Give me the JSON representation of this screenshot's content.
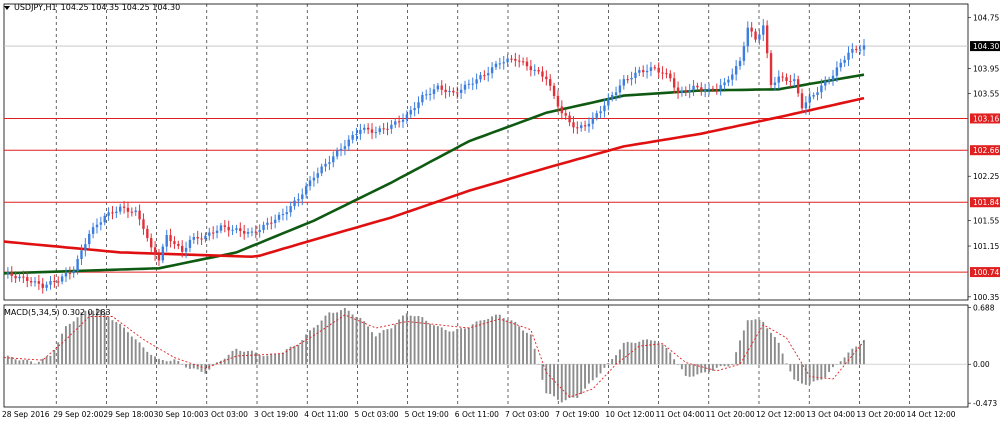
{
  "header": {
    "symbol": "USDJPY,H1",
    "ohlc": "104.25 104.35 104.25 104.30"
  },
  "macd_panel": {
    "label": "MACD(5,34,5) 0.302 0.283"
  },
  "colors": {
    "background": "#ffffff",
    "bull_candle": "#3c7ee0",
    "bear_candle": "#e0303a",
    "ma_green": "#0f5a12",
    "ma_red": "#e01010",
    "hline": "#e02020",
    "current_price_tag": "#000000"
  },
  "chart_data": [
    {
      "type": "candlestick",
      "title": "USDJPY,H1",
      "ylim": [
        100.3,
        104.9
      ],
      "y_ticks": [
        "104.75",
        "104.30",
        "103.95",
        "103.55",
        "103.16",
        "102.66",
        "102.25",
        "101.84",
        "101.55",
        "101.15",
        "100.74",
        "100.35"
      ],
      "current_price": 104.3,
      "horizontal_levels": [
        103.16,
        102.66,
        101.84,
        100.74
      ],
      "x_ticks": [
        "28 Sep 2016",
        "29 Sep 02:00",
        "29 Sep 18:00",
        "30 Sep 10:00",
        "3 Oct 03:00",
        "3 Oct 19:00",
        "4 Oct 11:00",
        "5 Oct 03:00",
        "5 Oct 19:00",
        "6 Oct 11:00",
        "7 Oct 03:00",
        "7 Oct 19:00",
        "10 Oct 12:00",
        "11 Oct 04:00",
        "11 Oct 20:00",
        "12 Oct 12:00",
        "13 Oct 04:00",
        "13 Oct 20:00",
        "14 Oct 12:00"
      ],
      "price_path": [
        [
          0,
          100.72
        ],
        [
          6,
          100.62
        ],
        [
          10,
          100.52
        ],
        [
          14,
          100.62
        ],
        [
          18,
          100.78
        ],
        [
          22,
          101.35
        ],
        [
          26,
          101.62
        ],
        [
          30,
          101.75
        ],
        [
          34,
          101.68
        ],
        [
          36,
          101.45
        ],
        [
          38,
          101.1
        ],
        [
          40,
          100.95
        ],
        [
          42,
          101.3
        ],
        [
          44,
          101.2
        ],
        [
          46,
          101.05
        ],
        [
          48,
          101.25
        ],
        [
          52,
          101.3
        ],
        [
          56,
          101.45
        ],
        [
          60,
          101.4
        ],
        [
          64,
          101.35
        ],
        [
          68,
          101.5
        ],
        [
          72,
          101.65
        ],
        [
          76,
          101.9
        ],
        [
          80,
          102.25
        ],
        [
          84,
          102.5
        ],
        [
          88,
          102.75
        ],
        [
          92,
          103.0
        ],
        [
          96,
          102.95
        ],
        [
          100,
          103.05
        ],
        [
          104,
          103.2
        ],
        [
          108,
          103.5
        ],
        [
          112,
          103.65
        ],
        [
          116,
          103.55
        ],
        [
          120,
          103.7
        ],
        [
          124,
          103.85
        ],
        [
          128,
          104.05
        ],
        [
          132,
          104.1
        ],
        [
          136,
          103.95
        ],
        [
          140,
          103.8
        ],
        [
          142,
          103.5
        ],
        [
          144,
          103.25
        ],
        [
          146,
          103.1
        ],
        [
          148,
          103.0
        ],
        [
          150,
          103.05
        ],
        [
          152,
          103.15
        ],
        [
          156,
          103.45
        ],
        [
          160,
          103.75
        ],
        [
          164,
          103.9
        ],
        [
          168,
          103.95
        ],
        [
          172,
          103.8
        ],
        [
          174,
          103.55
        ],
        [
          178,
          103.65
        ],
        [
          182,
          103.6
        ],
        [
          186,
          103.7
        ],
        [
          190,
          104.05
        ],
        [
          192,
          104.6
        ],
        [
          194,
          104.4
        ],
        [
          196,
          104.62
        ],
        [
          198,
          103.7
        ],
        [
          200,
          103.8
        ],
        [
          204,
          103.75
        ],
        [
          206,
          103.35
        ],
        [
          210,
          103.6
        ],
        [
          214,
          103.85
        ],
        [
          218,
          104.2
        ],
        [
          222,
          104.3
        ]
      ],
      "moving_averages": [
        {
          "name": "",
          "color": "#0f5a12",
          "points": [
            [
              0,
              100.72
            ],
            [
              40,
              100.8
            ],
            [
              60,
              101.05
            ],
            [
              80,
              101.55
            ],
            [
              100,
              102.15
            ],
            [
              120,
              102.8
            ],
            [
              140,
              103.25
            ],
            [
              160,
              103.52
            ],
            [
              180,
              103.6
            ],
            [
              200,
              103.62
            ],
            [
              222,
              103.85
            ]
          ]
        },
        {
          "name": "",
          "color": "#e01010",
          "points": [
            [
              0,
              101.22
            ],
            [
              30,
              101.05
            ],
            [
              65,
              100.98
            ],
            [
              80,
              101.25
            ],
            [
              100,
              101.6
            ],
            [
              120,
              102.02
            ],
            [
              140,
              102.38
            ],
            [
              160,
              102.72
            ],
            [
              180,
              102.92
            ],
            [
              200,
              103.18
            ],
            [
              222,
              103.48
            ]
          ]
        }
      ]
    },
    {
      "type": "bar",
      "title": "MACD(5,34,5) 0.302 0.283",
      "ylim": [
        -0.52,
        0.72
      ],
      "y_ticks": [
        "0.688",
        "0.00",
        "-0.473"
      ],
      "macd_path": [
        [
          0,
          0.1
        ],
        [
          8,
          0.02
        ],
        [
          12,
          0.1
        ],
        [
          16,
          0.45
        ],
        [
          20,
          0.62
        ],
        [
          24,
          0.68
        ],
        [
          28,
          0.55
        ],
        [
          32,
          0.4
        ],
        [
          36,
          0.2
        ],
        [
          40,
          0.05
        ],
        [
          44,
          0.05
        ],
        [
          48,
          -0.05
        ],
        [
          52,
          -0.1
        ],
        [
          56,
          0.05
        ],
        [
          60,
          0.18
        ],
        [
          64,
          0.15
        ],
        [
          68,
          0.1
        ],
        [
          72,
          0.15
        ],
        [
          76,
          0.25
        ],
        [
          80,
          0.45
        ],
        [
          84,
          0.62
        ],
        [
          88,
          0.67
        ],
        [
          92,
          0.56
        ],
        [
          96,
          0.35
        ],
        [
          100,
          0.45
        ],
        [
          104,
          0.62
        ],
        [
          108,
          0.56
        ],
        [
          112,
          0.45
        ],
        [
          116,
          0.4
        ],
        [
          120,
          0.46
        ],
        [
          124,
          0.55
        ],
        [
          128,
          0.6
        ],
        [
          132,
          0.5
        ],
        [
          136,
          0.35
        ],
        [
          140,
          -0.35
        ],
        [
          144,
          -0.45
        ],
        [
          148,
          -0.4
        ],
        [
          152,
          -0.2
        ],
        [
          156,
          0.0
        ],
        [
          160,
          0.25
        ],
        [
          164,
          0.28
        ],
        [
          168,
          0.3
        ],
        [
          172,
          0.15
        ],
        [
          176,
          -0.15
        ],
        [
          180,
          -0.12
        ],
        [
          184,
          -0.05
        ],
        [
          188,
          0.0
        ],
        [
          192,
          0.55
        ],
        [
          196,
          0.52
        ],
        [
          200,
          0.25
        ],
        [
          204,
          -0.2
        ],
        [
          208,
          -0.25
        ],
        [
          212,
          -0.15
        ],
        [
          216,
          0.05
        ],
        [
          222,
          0.3
        ]
      ],
      "signal_path": [
        [
          0,
          0.08
        ],
        [
          10,
          0.05
        ],
        [
          16,
          0.3
        ],
        [
          22,
          0.58
        ],
        [
          28,
          0.58
        ],
        [
          36,
          0.3
        ],
        [
          44,
          0.08
        ],
        [
          52,
          -0.05
        ],
        [
          60,
          0.1
        ],
        [
          72,
          0.13
        ],
        [
          80,
          0.35
        ],
        [
          88,
          0.6
        ],
        [
          96,
          0.44
        ],
        [
          104,
          0.52
        ],
        [
          112,
          0.48
        ],
        [
          120,
          0.44
        ],
        [
          128,
          0.55
        ],
        [
          136,
          0.42
        ],
        [
          140,
          -0.1
        ],
        [
          146,
          -0.4
        ],
        [
          152,
          -0.3
        ],
        [
          158,
          0.0
        ],
        [
          164,
          0.22
        ],
        [
          170,
          0.25
        ],
        [
          176,
          0.02
        ],
        [
          184,
          -0.08
        ],
        [
          190,
          0.0
        ],
        [
          196,
          0.48
        ],
        [
          202,
          0.32
        ],
        [
          208,
          -0.15
        ],
        [
          214,
          -0.18
        ],
        [
          222,
          0.28
        ]
      ]
    }
  ]
}
